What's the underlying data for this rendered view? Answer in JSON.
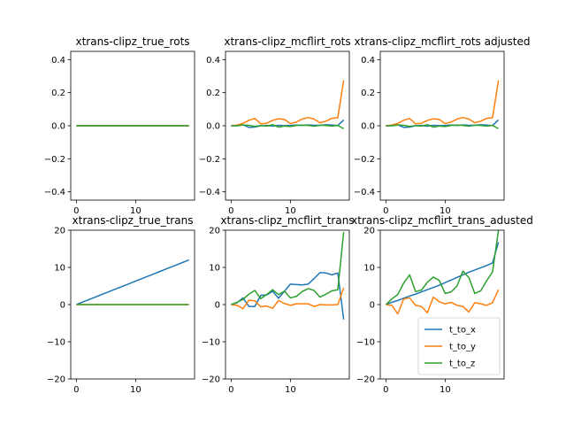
{
  "series_names": [
    "t_to_x",
    "t_to_y",
    "t_to_z"
  ],
  "colors": {
    "t_to_x": "#1f77b4",
    "t_to_y": "#ff7f0e",
    "t_to_z": "#2ca02c",
    "axes": "#000000",
    "background": "#ffffff"
  },
  "chart_data": [
    {
      "type": "line",
      "title": "xtrans-clipz_true_rots",
      "xlim": [
        -0.95,
        19.95
      ],
      "ylim": [
        -0.45,
        0.45
      ],
      "xticks": [
        0,
        10
      ],
      "xtick_labels": [
        "0",
        "10"
      ],
      "yticks": [
        -0.4,
        -0.2,
        0.0,
        0.2,
        0.4
      ],
      "ytick_labels": [
        "−0.4",
        "−0.2",
        "0.0",
        "0.2",
        "0.4"
      ],
      "x": [
        0,
        1,
        2,
        3,
        4,
        5,
        6,
        7,
        8,
        9,
        10,
        11,
        12,
        13,
        14,
        15,
        16,
        17,
        18,
        19
      ],
      "series": [
        {
          "name": "t_to_x",
          "values": [
            0,
            0,
            0,
            0,
            0,
            0,
            0,
            0,
            0,
            0,
            0,
            0,
            0,
            0,
            0,
            0,
            0,
            0,
            0,
            0
          ]
        },
        {
          "name": "t_to_y",
          "values": [
            0,
            0,
            0,
            0,
            0,
            0,
            0,
            0,
            0,
            0,
            0,
            0,
            0,
            0,
            0,
            0,
            0,
            0,
            0,
            0
          ]
        },
        {
          "name": "t_to_z",
          "values": [
            0,
            0,
            0,
            0,
            0,
            0,
            0,
            0,
            0,
            0,
            0,
            0,
            0,
            0,
            0,
            0,
            0,
            0,
            0,
            0
          ]
        }
      ],
      "legend": false
    },
    {
      "type": "line",
      "title": "xtrans-clipz_mcflirt_rots",
      "xlim": [
        -0.95,
        19.95
      ],
      "ylim": [
        -0.45,
        0.45
      ],
      "xticks": [
        0,
        10
      ],
      "xtick_labels": [
        "0",
        "10"
      ],
      "yticks": [
        -0.4,
        -0.2,
        0.0,
        0.2,
        0.4
      ],
      "ytick_labels": [
        "−0.4",
        "−0.2",
        "0.0",
        "0.2",
        "0.4"
      ],
      "x": [
        0,
        1,
        2,
        3,
        4,
        5,
        6,
        7,
        8,
        9,
        10,
        11,
        12,
        13,
        14,
        15,
        16,
        17,
        18,
        19
      ],
      "series": [
        {
          "name": "t_to_x",
          "values": [
            0,
            0,
            0.005,
            -0.01,
            -0.008,
            0,
            0.002,
            -0.003,
            0.003,
            0,
            0.002,
            0.004,
            0.002,
            0.005,
            0.003,
            0.003,
            0.006,
            0.004,
            0.001,
            0.035
          ]
        },
        {
          "name": "t_to_y",
          "values": [
            0,
            0.004,
            0.014,
            0.033,
            0.044,
            0.012,
            0.015,
            0.032,
            0.042,
            0.038,
            0.013,
            0.022,
            0.04,
            0.05,
            0.04,
            0.018,
            0.027,
            0.045,
            0.048,
            0.275
          ]
        },
        {
          "name": "t_to_z",
          "values": [
            0,
            0,
            0.005,
            0.003,
            -0.004,
            0.001,
            -0.002,
            0.006,
            -0.008,
            -0.002,
            -0.005,
            0.002,
            0.004,
            0.002,
            -0.003,
            0.003,
            0.002,
            -0.002,
            0.002,
            -0.018
          ]
        }
      ],
      "legend": false
    },
    {
      "type": "line",
      "title": "xtrans-clipz_mcflirt_rots adjusted",
      "xlim": [
        -0.95,
        19.95
      ],
      "ylim": [
        -0.45,
        0.45
      ],
      "xticks": [
        0,
        10
      ],
      "xtick_labels": [
        "0",
        "10"
      ],
      "yticks": [
        -0.4,
        -0.2,
        0.0,
        0.2,
        0.4
      ],
      "ytick_labels": [
        "−0.4",
        "−0.2",
        "0.0",
        "0.2",
        "0.4"
      ],
      "x": [
        0,
        1,
        2,
        3,
        4,
        5,
        6,
        7,
        8,
        9,
        10,
        11,
        12,
        13,
        14,
        15,
        16,
        17,
        18,
        19
      ],
      "series": [
        {
          "name": "t_to_x",
          "values": [
            0,
            0,
            0.005,
            -0.01,
            -0.008,
            0,
            0.002,
            -0.003,
            0.003,
            0,
            0.002,
            0.004,
            0.002,
            0.005,
            0.003,
            0.003,
            0.006,
            0.004,
            0.001,
            0.035
          ]
        },
        {
          "name": "t_to_y",
          "values": [
            0,
            0.004,
            0.014,
            0.033,
            0.044,
            0.012,
            0.015,
            0.032,
            0.042,
            0.038,
            0.013,
            0.022,
            0.04,
            0.05,
            0.04,
            0.018,
            0.027,
            0.045,
            0.048,
            0.275
          ]
        },
        {
          "name": "t_to_z",
          "values": [
            0,
            0,
            0.005,
            0.003,
            -0.004,
            0.001,
            -0.002,
            0.006,
            -0.008,
            -0.002,
            -0.005,
            0.002,
            0.004,
            0.002,
            -0.003,
            0.003,
            0.002,
            -0.002,
            0.002,
            -0.018
          ]
        }
      ],
      "legend": false
    },
    {
      "type": "line",
      "title": "xtrans-clipz_true_trans",
      "xlim": [
        -0.95,
        19.95
      ],
      "ylim": [
        -20,
        20
      ],
      "xticks": [
        0,
        10
      ],
      "xtick_labels": [
        "0",
        "10"
      ],
      "yticks": [
        -20,
        -10,
        0,
        10,
        20
      ],
      "ytick_labels": [
        "−20",
        "−10",
        "0",
        "10",
        "20"
      ],
      "x": [
        0,
        1,
        2,
        3,
        4,
        5,
        6,
        7,
        8,
        9,
        10,
        11,
        12,
        13,
        14,
        15,
        16,
        17,
        18,
        19
      ],
      "series": [
        {
          "name": "t_to_x",
          "values": [
            0,
            0.63,
            1.26,
            1.89,
            2.53,
            3.16,
            3.79,
            4.42,
            5.05,
            5.68,
            6.32,
            6.95,
            7.58,
            8.21,
            8.84,
            9.47,
            10.11,
            10.74,
            11.37,
            12.0
          ]
        },
        {
          "name": "t_to_y",
          "values": [
            0,
            0,
            0,
            0,
            0,
            0,
            0,
            0,
            0,
            0,
            0,
            0,
            0,
            0,
            0,
            0,
            0,
            0,
            0,
            0
          ]
        },
        {
          "name": "t_to_z",
          "values": [
            0,
            0,
            0,
            0,
            0,
            0,
            0,
            0,
            0,
            0,
            0,
            0,
            0,
            0,
            0,
            0,
            0,
            0,
            0,
            0
          ]
        }
      ],
      "legend": false
    },
    {
      "type": "line",
      "title": "xtrans-clipz_mcflirt_trans",
      "xlim": [
        -0.95,
        19.95
      ],
      "ylim": [
        -20,
        20
      ],
      "xticks": [
        0,
        10
      ],
      "xtick_labels": [
        "0",
        "10"
      ],
      "yticks": [
        -20,
        -10,
        0,
        10,
        20
      ],
      "ytick_labels": [
        "−20",
        "−10",
        "0",
        "10",
        "20"
      ],
      "x": [
        0,
        1,
        2,
        3,
        4,
        5,
        6,
        7,
        8,
        9,
        10,
        11,
        12,
        13,
        14,
        15,
        16,
        17,
        18,
        19
      ],
      "series": [
        {
          "name": "t_to_x",
          "values": [
            0,
            0.5,
            1.8,
            -0.5,
            -0.5,
            2.5,
            2.6,
            3.6,
            1.7,
            3.6,
            5.5,
            5.4,
            5.3,
            5.5,
            7.0,
            8.6,
            8.5,
            8.0,
            8.5,
            -4.0
          ]
        },
        {
          "name": "t_to_y",
          "values": [
            0,
            -0.2,
            -1.1,
            1.2,
            1.0,
            -0.6,
            -0.4,
            -1.0,
            1.1,
            0.3,
            -0.2,
            0.2,
            0.2,
            0.2,
            -0.5,
            0.0,
            -0.1,
            -0.1,
            0.0,
            4.5
          ]
        },
        {
          "name": "t_to_z",
          "values": [
            0,
            0.6,
            1.4,
            2.8,
            3.8,
            1.6,
            2.7,
            4.0,
            2.7,
            3.6,
            1.8,
            2.2,
            3.5,
            4.3,
            3.8,
            2.0,
            2.8,
            3.7,
            4.0,
            19.5
          ]
        }
      ],
      "legend": false
    },
    {
      "type": "line",
      "title": "xtrans-clipz_mcflirt_trans_adusted",
      "xlim": [
        -0.95,
        19.95
      ],
      "ylim": [
        -20,
        20
      ],
      "xticks": [
        0,
        10
      ],
      "xtick_labels": [
        "0",
        "10"
      ],
      "yticks": [
        -20,
        -10,
        0,
        10,
        20
      ],
      "ytick_labels": [
        "−20",
        "−10",
        "0",
        "10",
        "20"
      ],
      "x": [
        0,
        1,
        2,
        3,
        4,
        5,
        6,
        7,
        8,
        9,
        10,
        11,
        12,
        13,
        14,
        15,
        16,
        17,
        18,
        19
      ],
      "series": [
        {
          "name": "t_to_x",
          "values": [
            0,
            0.6,
            1.1,
            1.7,
            2.3,
            2.8,
            3.4,
            4.0,
            4.6,
            5.2,
            5.9,
            6.6,
            7.3,
            8.0,
            8.7,
            9.3,
            9.9,
            10.5,
            11.2,
            16.8
          ]
        },
        {
          "name": "t_to_y",
          "values": [
            0,
            -0.2,
            -2.5,
            1.5,
            1.8,
            -0.2,
            -0.5,
            -2.2,
            2.0,
            0.8,
            0.2,
            0.6,
            -0.2,
            -0.5,
            -2.0,
            0.5,
            0.2,
            -0.2,
            0.5,
            4.0
          ]
        },
        {
          "name": "t_to_z",
          "values": [
            0,
            1.5,
            2.7,
            5.8,
            8.0,
            3.5,
            3.9,
            6.0,
            7.4,
            6.5,
            3.0,
            3.4,
            5.0,
            9.0,
            7.3,
            3.0,
            3.7,
            6.4,
            8.8,
            20.0
          ]
        }
      ],
      "legend": true,
      "legend_position": "lower right"
    }
  ]
}
